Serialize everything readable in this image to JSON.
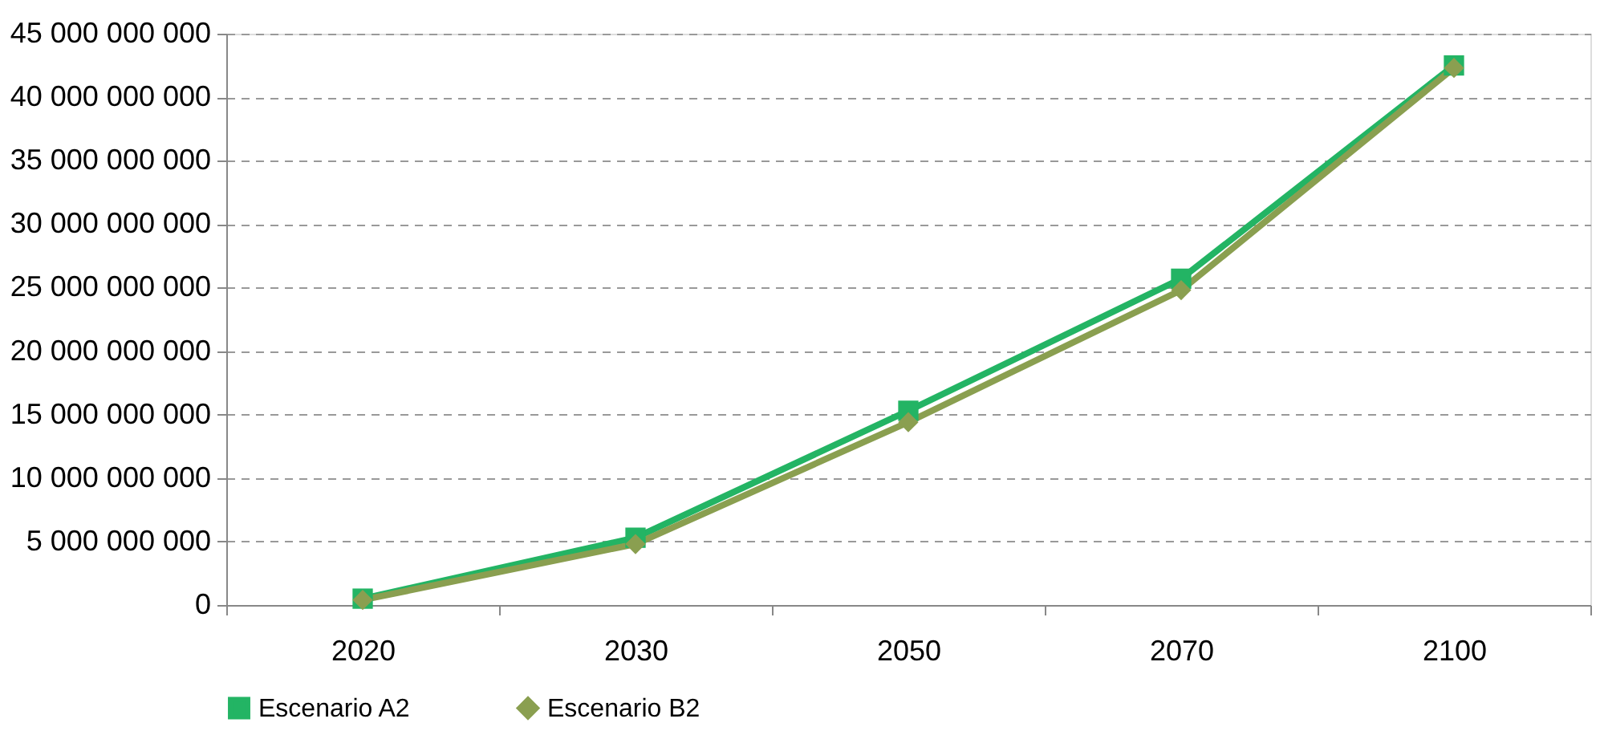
{
  "chart_data": {
    "type": "line",
    "categories": [
      "2020",
      "2030",
      "2050",
      "2070",
      "2100"
    ],
    "series": [
      {
        "name": "Escenario A2",
        "color": "#23b464",
        "marker": "square",
        "values": [
          500000000,
          5300000000,
          15300000000,
          25700000000,
          42500000000
        ]
      },
      {
        "name": "Escenario B2",
        "color": "#8a9f50",
        "marker": "diamond",
        "values": [
          400000000,
          4800000000,
          14400000000,
          24800000000,
          42300000000
        ]
      }
    ],
    "ylim": [
      0,
      45000000000
    ],
    "yticks": [
      0,
      5000000000,
      10000000000,
      15000000000,
      20000000000,
      25000000000,
      30000000000,
      35000000000,
      40000000000,
      45000000000
    ],
    "grid": "y",
    "legend": "bottom",
    "line_style": "solid"
  }
}
